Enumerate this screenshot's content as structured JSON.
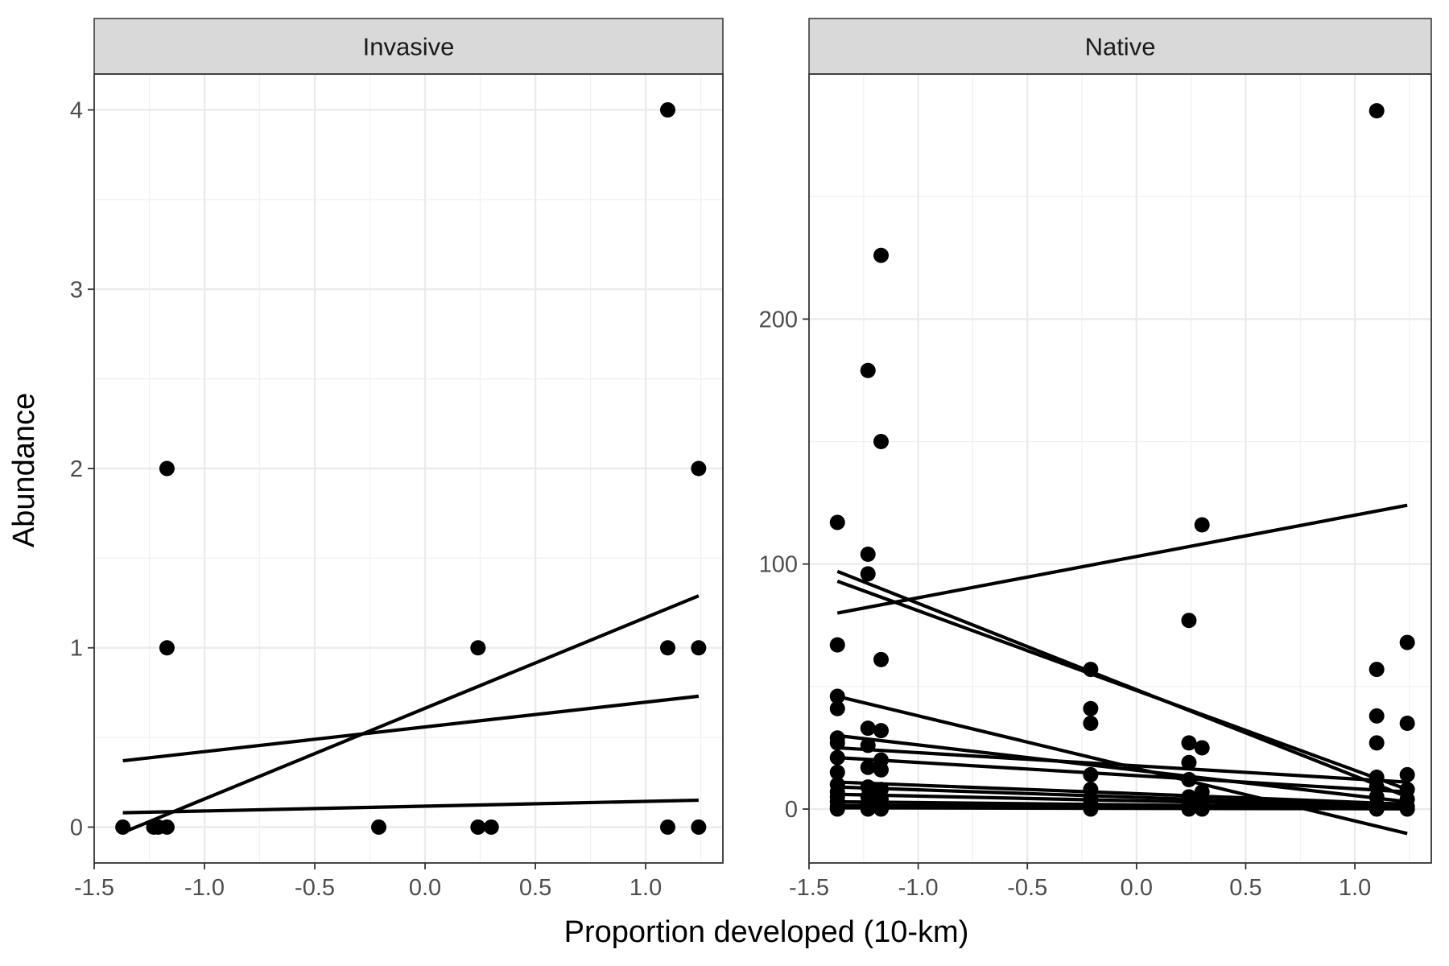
{
  "figure": {
    "xlabel": "Proportion developed (10-km)",
    "ylabel": "Abundance"
  },
  "chart_data": [
    {
      "type": "scatter",
      "facet": "Invasive",
      "xlabel": "Proportion developed (10-km)",
      "ylabel": "Abundance",
      "xlim": [
        -1.5,
        1.35
      ],
      "ylim": [
        -0.2,
        4.2
      ],
      "x_ticks": [
        -1.5,
        -1.0,
        -0.5,
        0.0,
        0.5,
        1.0
      ],
      "x_tick_labels": [
        "-1.5",
        "-1.0",
        "-0.5",
        "0.0",
        "0.5",
        "1.0"
      ],
      "y_ticks": [
        0,
        1,
        2,
        3,
        4
      ],
      "y_tick_labels": [
        "0",
        "1",
        "2",
        "3",
        "4"
      ],
      "grid": true,
      "points": [
        {
          "x": -1.37,
          "y": 0
        },
        {
          "x": -1.23,
          "y": 0
        },
        {
          "x": -1.21,
          "y": 0
        },
        {
          "x": -1.17,
          "y": 0
        },
        {
          "x": -1.17,
          "y": 1
        },
        {
          "x": -1.17,
          "y": 2
        },
        {
          "x": -0.21,
          "y": 0
        },
        {
          "x": 0.24,
          "y": 0
        },
        {
          "x": 0.24,
          "y": 1
        },
        {
          "x": 0.3,
          "y": 0
        },
        {
          "x": 1.1,
          "y": 0
        },
        {
          "x": 1.1,
          "y": 1
        },
        {
          "x": 1.1,
          "y": 4
        },
        {
          "x": 1.24,
          "y": 0
        },
        {
          "x": 1.24,
          "y": 1
        },
        {
          "x": 1.24,
          "y": 2
        }
      ],
      "lines": [
        {
          "x": [
            -1.37,
            1.24
          ],
          "y": [
            -0.03,
            1.29
          ]
        },
        {
          "x": [
            -1.37,
            1.24
          ],
          "y": [
            0.37,
            0.73
          ]
        },
        {
          "x": [
            -1.37,
            1.24
          ],
          "y": [
            0.08,
            0.15
          ]
        }
      ]
    },
    {
      "type": "scatter",
      "facet": "Native",
      "xlabel": "Proportion developed (10-km)",
      "ylabel": "Abundance",
      "xlim": [
        -1.5,
        1.35
      ],
      "ylim": [
        -22,
        300
      ],
      "x_ticks": [
        -1.5,
        -1.0,
        -0.5,
        0.0,
        0.5,
        1.0
      ],
      "x_tick_labels": [
        "-1.5",
        "-1.0",
        "-0.5",
        "0.0",
        "0.5",
        "1.0"
      ],
      "y_ticks": [
        0,
        100,
        200
      ],
      "y_tick_labels": [
        "0",
        "100",
        "200"
      ],
      "grid": true,
      "points": [
        {
          "x": -1.37,
          "y": 117
        },
        {
          "x": -1.37,
          "y": 67
        },
        {
          "x": -1.37,
          "y": 46
        },
        {
          "x": -1.37,
          "y": 41
        },
        {
          "x": -1.37,
          "y": 29
        },
        {
          "x": -1.37,
          "y": 27
        },
        {
          "x": -1.37,
          "y": 21
        },
        {
          "x": -1.37,
          "y": 15
        },
        {
          "x": -1.37,
          "y": 10
        },
        {
          "x": -1.37,
          "y": 7
        },
        {
          "x": -1.37,
          "y": 5
        },
        {
          "x": -1.37,
          "y": 3
        },
        {
          "x": -1.37,
          "y": 1
        },
        {
          "x": -1.37,
          "y": 0
        },
        {
          "x": -1.23,
          "y": 179
        },
        {
          "x": -1.23,
          "y": 104
        },
        {
          "x": -1.23,
          "y": 96
        },
        {
          "x": -1.23,
          "y": 33
        },
        {
          "x": -1.23,
          "y": 26
        },
        {
          "x": -1.23,
          "y": 17
        },
        {
          "x": -1.23,
          "y": 9
        },
        {
          "x": -1.23,
          "y": 5
        },
        {
          "x": -1.23,
          "y": 2
        },
        {
          "x": -1.23,
          "y": 0
        },
        {
          "x": -1.17,
          "y": 226
        },
        {
          "x": -1.17,
          "y": 150
        },
        {
          "x": -1.17,
          "y": 61
        },
        {
          "x": -1.17,
          "y": 32
        },
        {
          "x": -1.17,
          "y": 20
        },
        {
          "x": -1.17,
          "y": 16
        },
        {
          "x": -1.17,
          "y": 8
        },
        {
          "x": -1.17,
          "y": 4
        },
        {
          "x": -1.17,
          "y": 1
        },
        {
          "x": -1.17,
          "y": 0
        },
        {
          "x": -0.21,
          "y": 57
        },
        {
          "x": -0.21,
          "y": 41
        },
        {
          "x": -0.21,
          "y": 35
        },
        {
          "x": -0.21,
          "y": 14
        },
        {
          "x": -0.21,
          "y": 8
        },
        {
          "x": -0.21,
          "y": 4
        },
        {
          "x": -0.21,
          "y": 2
        },
        {
          "x": -0.21,
          "y": 0
        },
        {
          "x": 0.24,
          "y": 77
        },
        {
          "x": 0.24,
          "y": 27
        },
        {
          "x": 0.24,
          "y": 19
        },
        {
          "x": 0.24,
          "y": 12
        },
        {
          "x": 0.24,
          "y": 5
        },
        {
          "x": 0.24,
          "y": 2
        },
        {
          "x": 0.24,
          "y": 0
        },
        {
          "x": 0.3,
          "y": 116
        },
        {
          "x": 0.3,
          "y": 25
        },
        {
          "x": 0.3,
          "y": 7
        },
        {
          "x": 0.3,
          "y": 3
        },
        {
          "x": 0.3,
          "y": 0
        },
        {
          "x": 1.1,
          "y": 285
        },
        {
          "x": 1.1,
          "y": 57
        },
        {
          "x": 1.1,
          "y": 38
        },
        {
          "x": 1.1,
          "y": 27
        },
        {
          "x": 1.1,
          "y": 13
        },
        {
          "x": 1.1,
          "y": 9
        },
        {
          "x": 1.1,
          "y": 5
        },
        {
          "x": 1.1,
          "y": 2
        },
        {
          "x": 1.1,
          "y": 0
        },
        {
          "x": 1.24,
          "y": 68
        },
        {
          "x": 1.24,
          "y": 35
        },
        {
          "x": 1.24,
          "y": 14
        },
        {
          "x": 1.24,
          "y": 8
        },
        {
          "x": 1.24,
          "y": 4
        },
        {
          "x": 1.24,
          "y": 1
        },
        {
          "x": 1.24,
          "y": 0
        }
      ],
      "lines": [
        {
          "x": [
            -1.37,
            1.24
          ],
          "y": [
            80,
            124
          ]
        },
        {
          "x": [
            -1.37,
            1.24
          ],
          "y": [
            97,
            5
          ]
        },
        {
          "x": [
            -1.37,
            1.24
          ],
          "y": [
            93,
            8
          ]
        },
        {
          "x": [
            -1.37,
            1.24
          ],
          "y": [
            46,
            -10
          ]
        },
        {
          "x": [
            -1.37,
            1.24
          ],
          "y": [
            30,
            3
          ]
        },
        {
          "x": [
            -1.37,
            1.24
          ],
          "y": [
            25,
            11
          ]
        },
        {
          "x": [
            -1.37,
            1.24
          ],
          "y": [
            21,
            7
          ]
        },
        {
          "x": [
            -1.37,
            1.24
          ],
          "y": [
            11,
            2
          ]
        },
        {
          "x": [
            -1.37,
            1.24
          ],
          "y": [
            9,
            1
          ]
        },
        {
          "x": [
            -1.37,
            1.24
          ],
          "y": [
            6,
            1
          ]
        },
        {
          "x": [
            -1.37,
            1.24
          ],
          "y": [
            3,
            0.5
          ]
        },
        {
          "x": [
            -1.37,
            1.24
          ],
          "y": [
            1.5,
            0.3
          ]
        },
        {
          "x": [
            -1.37,
            1.24
          ],
          "y": [
            0.5,
            0.1
          ]
        }
      ]
    }
  ]
}
